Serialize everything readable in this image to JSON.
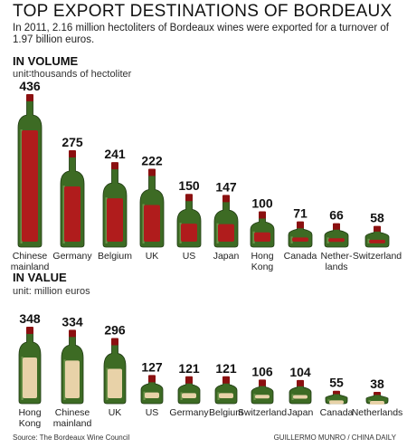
{
  "title": "TOP EXPORT DESTINATIONS OF BORDEAUX",
  "subtitle": "In 2011, 2.16 million hectoliters of Bordeaux wines were exported for a turnover of 1.97 billion euros.",
  "colors": {
    "bottle_glass": "#3d6b24",
    "label_red": "#b01c1c",
    "label_cream": "#e8d2a8",
    "cap_red": "#8b1010"
  },
  "chart_data": [
    {
      "type": "bar",
      "section": "IN VOLUME",
      "unit": "unit∶thousands of hectoliter",
      "categories": [
        "Chinese mainland",
        "Germany",
        "Belgium",
        "UK",
        "US",
        "Japan",
        "Hong Kong",
        "Canada",
        "Netherlands",
        "Switzerland"
      ],
      "category_lines": [
        [
          "Chinese",
          "mainland"
        ],
        [
          "Germany"
        ],
        [
          "Belgium"
        ],
        [
          "UK"
        ],
        [
          "US"
        ],
        [
          "Japan"
        ],
        [
          "Hong",
          "Kong"
        ],
        [
          "Canada"
        ],
        [
          "Nether-",
          "lands"
        ],
        [
          "Switzerland"
        ]
      ],
      "values": [
        436,
        275,
        241,
        222,
        150,
        147,
        100,
        71,
        66,
        58
      ],
      "labels": [
        "436",
        "275",
        "241",
        "222",
        "150",
        "147",
        "100",
        "71",
        "66",
        "58"
      ],
      "ylim": [
        0,
        436
      ]
    },
    {
      "type": "bar",
      "section": "IN VALUE",
      "unit": "unit: million euros",
      "categories": [
        "Hong Kong",
        "Chinese mainland",
        "UK",
        "US",
        "Germany",
        "Belgium",
        "Switzerland",
        "Japan",
        "Canada",
        "Netherlands"
      ],
      "category_lines": [
        [
          "Hong",
          "Kong"
        ],
        [
          "Chinese",
          "mainland"
        ],
        [
          "UK"
        ],
        [
          "US"
        ],
        [
          "Germany"
        ],
        [
          "Belgium"
        ],
        [
          "Switzerland"
        ],
        [
          "Japan"
        ],
        [
          "Canada"
        ],
        [
          "Netherlands"
        ]
      ],
      "values": [
        348,
        334,
        296,
        127,
        121,
        121,
        106,
        104,
        55,
        38
      ],
      "labels": [
        "348",
        "334",
        "296",
        "127",
        "121",
        "121",
        "106",
        "104",
        "55",
        "38"
      ],
      "ylim": [
        0,
        348
      ]
    }
  ],
  "footer": {
    "source": "Source: The Bordeaux Wine Council",
    "credit": "GUILLERMO MUNRO / CHINA DAILY"
  }
}
